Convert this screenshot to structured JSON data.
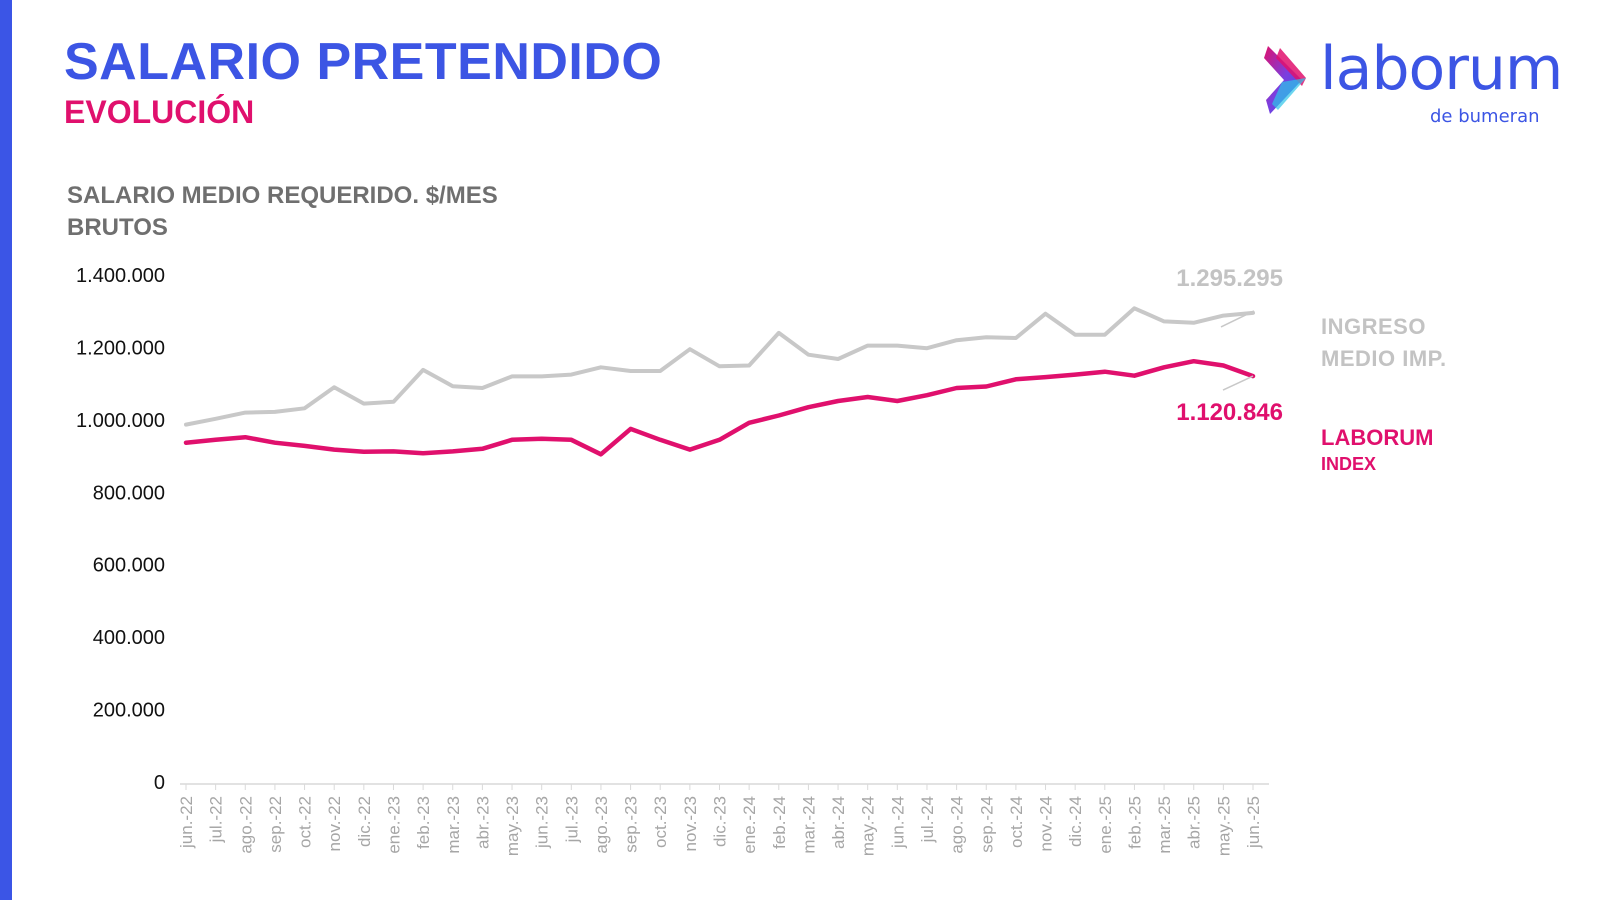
{
  "header": {
    "title": "SALARIO PRETENDIDO",
    "subtitle": "EVOLUCIÓN"
  },
  "logo": {
    "word": "laborum",
    "sub": "de bumeran",
    "icon": "chevron-arrow-icon"
  },
  "colors": {
    "accent_blue": "#3c55e4",
    "accent_pink": "#e0106d",
    "gray_series": "#c8c8c8",
    "axis_text": "#9a9a9a"
  },
  "legend": {
    "gray": "INGRESO MEDIO IMP.",
    "pink_line1": "LABORUM",
    "pink_line2": "INDEX"
  },
  "chart_data": {
    "type": "line",
    "title": "SALARIO MEDIO REQUERIDO. $/MES BRUTOS",
    "ylim": [
      0,
      1400000
    ],
    "yticks": [
      "0",
      "200.000",
      "400.000",
      "600.000",
      "800.000",
      "1.000.000",
      "1.200.000",
      "1.400.000"
    ],
    "ytick_values": [
      0,
      200000,
      400000,
      600000,
      800000,
      1000000,
      1200000,
      1400000
    ],
    "grid": false,
    "categories": [
      "jun.-22",
      "jul.-22",
      "ago.-22",
      "sep.-22",
      "oct.-22",
      "nov.-22",
      "dic.-22",
      "ene.-23",
      "feb.-23",
      "mar.-23",
      "abr.-23",
      "may.-23",
      "jun.-23",
      "jul.-23",
      "ago.-23",
      "sep.-23",
      "oct.-23",
      "nov.-23",
      "dic.-23",
      "ene.-24",
      "feb.-24",
      "mar.-24",
      "abr.-24",
      "may.-24",
      "jun.-24",
      "jul.-24",
      "ago.-24",
      "sep.-24",
      "oct.-24",
      "nov.-24",
      "dic.-24",
      "ene.-25",
      "feb.-25",
      "mar.-25",
      "abr.-25",
      "may.-25",
      "jun.-25"
    ],
    "series": [
      {
        "name": "INGRESO MEDIO IMP.",
        "color": "#c8c8c8",
        "values": [
          987000,
          1003000,
          1020000,
          1022000,
          1032000,
          1090000,
          1045000,
          1050000,
          1138000,
          1093000,
          1088000,
          1120000,
          1120000,
          1125000,
          1145000,
          1135000,
          1135000,
          1195000,
          1148000,
          1150000,
          1240000,
          1180000,
          1168000,
          1205000,
          1205000,
          1198000,
          1220000,
          1228000,
          1226000,
          1293000,
          1235000,
          1235000,
          1308000,
          1272000,
          1268000,
          1288000,
          1295295
        ]
      },
      {
        "name": "LABORUM INDEX",
        "color": "#e0106d",
        "values": [
          937000,
          945000,
          952000,
          937000,
          928000,
          918000,
          912000,
          913000,
          908000,
          913000,
          920000,
          945000,
          948000,
          945000,
          905000,
          975000,
          945000,
          918000,
          945000,
          992000,
          1012000,
          1035000,
          1052000,
          1063000,
          1052000,
          1068000,
          1088000,
          1092000,
          1112000,
          1118000,
          1125000,
          1133000,
          1122000,
          1145000,
          1162000,
          1150000,
          1120846
        ]
      }
    ],
    "annotations": [
      "1.295.295",
      "1.120.846"
    ]
  }
}
